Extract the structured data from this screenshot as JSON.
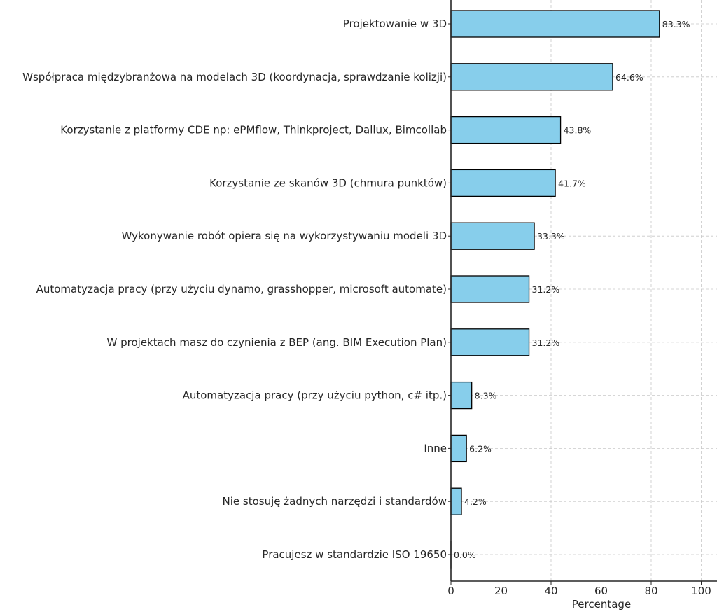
{
  "chart_data": {
    "type": "bar",
    "orientation": "horizontal",
    "categories": [
      "Projektowanie w 3D",
      "Współpraca międzybranżowa na modelach 3D (koordynacja, sprawdzanie kolizji)",
      "Korzystanie z platformy CDE np:  ePMflow, Thinkproject, Dallux, Bimcollab",
      "Korzystanie ze skanów 3D (chmura punktów)",
      "Wykonywanie robót opiera się na wykorzystywaniu modeli 3D",
      "Automatyzacja pracy (przy użyciu dynamo, grasshopper, microsoft automate)",
      "W projektach masz do czynienia z BEP (ang. BIM Execution Plan)",
      "Automatyzacja pracy (przy użyciu python, c# itp.)",
      "Inne",
      "Nie stosuję żadnych narzędzi i standardów",
      "Pracujesz w standardzie ISO 19650"
    ],
    "values": [
      83.3,
      64.6,
      43.8,
      41.7,
      33.3,
      31.2,
      31.2,
      8.3,
      6.2,
      4.2,
      0.0
    ],
    "data_labels": [
      "83.3%",
      "64.6%",
      "43.8%",
      "41.7%",
      "33.3%",
      "31.2%",
      "31.2%",
      "8.3%",
      "6.2%",
      "4.2%",
      "0.0%"
    ],
    "xlabel": "Percentage",
    "ylabel": "",
    "title": "",
    "xlim": [
      0,
      105
    ],
    "xticks": [
      "0",
      "20",
      "40",
      "60",
      "80",
      "100"
    ],
    "grid": true,
    "bar_color": "#87ceeb",
    "edge_color": "#000000"
  }
}
